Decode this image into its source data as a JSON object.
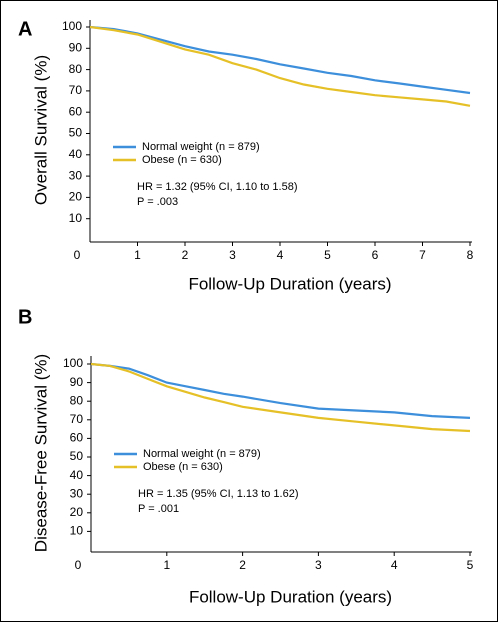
{
  "chart_data": [
    {
      "type": "line",
      "panel_label": "A",
      "ylabel": "Overall Survival (%)",
      "xlabel": "Follow-Up Duration (years)",
      "x": [
        0,
        0.5,
        1,
        1.5,
        2,
        2.5,
        3,
        3.5,
        4,
        4.5,
        5,
        5.5,
        6,
        6.5,
        7,
        7.5,
        8
      ],
      "series": [
        {
          "name": "Normal weight (n = 879)",
          "color": "#3d8fdc",
          "values": [
            100,
            99,
            97,
            94,
            91,
            88.5,
            87,
            85,
            82.5,
            80.5,
            78.5,
            77,
            75,
            73.5,
            72,
            70.5,
            69
          ]
        },
        {
          "name": "Obese (n = 630)",
          "color": "#e6c027",
          "values": [
            100,
            98.5,
            96.5,
            93,
            89.5,
            87,
            83,
            80,
            76,
            73,
            71,
            69.5,
            68,
            67,
            66,
            65,
            63
          ]
        }
      ],
      "annotations": [
        "HR = 1.32 (95% CI, 1.10 to 1.58)",
        "P = .003"
      ],
      "xlim": [
        0,
        8
      ],
      "xticks": [
        0,
        1,
        2,
        3,
        4,
        5,
        6,
        7,
        8
      ],
      "ylim": [
        0,
        100
      ],
      "yticks": [
        10,
        20,
        30,
        40,
        50,
        60,
        70,
        80,
        90,
        100
      ]
    },
    {
      "type": "line",
      "panel_label": "B",
      "ylabel": "Disease-Free Survival (%)",
      "xlabel": "Follow-Up Duration (years)",
      "x": [
        0,
        0.25,
        0.5,
        0.75,
        1,
        1.25,
        1.5,
        1.75,
        2,
        2.5,
        3,
        3.5,
        4,
        4.5,
        5
      ],
      "series": [
        {
          "name": "Normal weight (n = 879)",
          "color": "#3d8fdc",
          "values": [
            100,
            99,
            97.5,
            94,
            90,
            88,
            86,
            84,
            82.5,
            79,
            76,
            75,
            74,
            72,
            71
          ]
        },
        {
          "name": "Obese (n = 630)",
          "color": "#e6c027",
          "values": [
            100,
            99,
            96,
            92,
            88,
            85,
            82,
            79.5,
            77,
            74,
            71,
            69,
            67,
            65,
            64
          ]
        }
      ],
      "annotations": [
        "HR = 1.35 (95% CI, 1.13 to 1.62)",
        "P = .001"
      ],
      "xlim": [
        0,
        5
      ],
      "xticks": [
        0,
        1,
        2,
        3,
        4,
        5
      ],
      "ylim": [
        0,
        100
      ],
      "yticks": [
        10,
        20,
        30,
        40,
        50,
        60,
        70,
        80,
        90,
        100
      ]
    }
  ]
}
